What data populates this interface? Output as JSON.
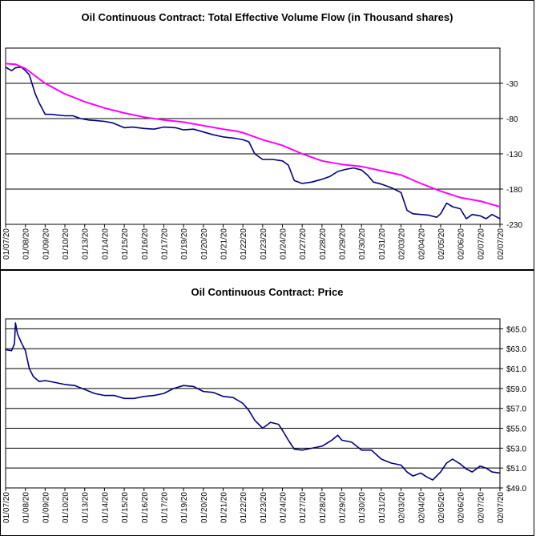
{
  "chart_data": [
    {
      "type": "line",
      "title": "Oil Continuous Contract: Total Effective Volume Flow (in Thousand shares)",
      "xlabel": "",
      "ylabel": "",
      "ylim": [
        -230,
        20
      ],
      "y_axis_side": "right",
      "y_ticks": [
        -30,
        -80,
        -130,
        -180,
        -230
      ],
      "y_tick_labels": [
        "-30",
        "-80",
        "-130",
        "-180",
        "-230"
      ],
      "grid": true,
      "x_tick_labels": [
        "01/07/20",
        "01/08/20",
        "01/09/20",
        "01/10/20",
        "01/13/20",
        "01/14/20",
        "01/15/20",
        "01/16/20",
        "01/17/20",
        "01/19/20",
        "01/20/20",
        "01/21/20",
        "01/22/20",
        "01/23/20",
        "01/24/20",
        "01/27/20",
        "01/28/20",
        "01/29/20",
        "01/30/20",
        "01/31/20",
        "02/03/20",
        "02/04/20",
        "02/05/20",
        "02/06/20",
        "02/07/20",
        "02/07/20"
      ],
      "series": [
        {
          "name": "",
          "color": "#000080",
          "style": "volume-flow",
          "points": [
            [
              0,
              -7
            ],
            [
              0.3,
              -12
            ],
            [
              0.5,
              -8
            ],
            [
              0.8,
              -7
            ],
            [
              1.0,
              -12
            ],
            [
              1.2,
              -18
            ],
            [
              1.5,
              -45
            ],
            [
              1.7,
              -58
            ],
            [
              2.0,
              -74
            ],
            [
              2.3,
              -74
            ],
            [
              2.6,
              -75
            ],
            [
              3.0,
              -76
            ],
            [
              3.4,
              -76
            ],
            [
              3.8,
              -80
            ],
            [
              4.2,
              -82
            ],
            [
              4.6,
              -83
            ],
            [
              5.0,
              -84
            ],
            [
              5.4,
              -86
            ],
            [
              6.0,
              -93
            ],
            [
              6.4,
              -92
            ],
            [
              7.0,
              -94
            ],
            [
              7.5,
              -95
            ],
            [
              8.0,
              -92
            ],
            [
              8.6,
              -93
            ],
            [
              9.0,
              -96
            ],
            [
              9.5,
              -95
            ],
            [
              10.0,
              -99
            ],
            [
              10.5,
              -103
            ],
            [
              11.0,
              -106
            ],
            [
              11.6,
              -108
            ],
            [
              12.0,
              -110
            ],
            [
              12.3,
              -113
            ],
            [
              12.6,
              -130
            ],
            [
              13.0,
              -138
            ],
            [
              13.5,
              -138
            ],
            [
              14.0,
              -140
            ],
            [
              14.3,
              -146
            ],
            [
              14.6,
              -168
            ],
            [
              15.0,
              -172
            ],
            [
              15.5,
              -170
            ],
            [
              16.0,
              -166
            ],
            [
              16.4,
              -162
            ],
            [
              16.8,
              -155
            ],
            [
              17.2,
              -152
            ],
            [
              17.6,
              -150
            ],
            [
              18.0,
              -153
            ],
            [
              18.3,
              -160
            ],
            [
              18.6,
              -170
            ],
            [
              19.0,
              -173
            ],
            [
              19.5,
              -178
            ],
            [
              20.0,
              -185
            ],
            [
              20.3,
              -210
            ],
            [
              20.6,
              -215
            ],
            [
              21.0,
              -216
            ],
            [
              21.4,
              -217
            ],
            [
              21.8,
              -220
            ],
            [
              22.0,
              -215
            ],
            [
              22.3,
              -200
            ],
            [
              22.6,
              -205
            ],
            [
              23.0,
              -208
            ],
            [
              23.3,
              -222
            ],
            [
              23.6,
              -216
            ],
            [
              24.0,
              -218
            ],
            [
              24.3,
              -222
            ],
            [
              24.6,
              -216
            ],
            [
              25.0,
              -222
            ]
          ]
        },
        {
          "name": "",
          "color": "#ff00ff",
          "style": "moving-average",
          "points": [
            [
              0,
              -2
            ],
            [
              0.5,
              -3
            ],
            [
              1.0,
              -9
            ],
            [
              2.0,
              -30
            ],
            [
              3.0,
              -45
            ],
            [
              4.0,
              -56
            ],
            [
              5.0,
              -65
            ],
            [
              6.0,
              -72
            ],
            [
              7.0,
              -78
            ],
            [
              8.0,
              -82
            ],
            [
              9.0,
              -85
            ],
            [
              10.0,
              -90
            ],
            [
              11.0,
              -95
            ],
            [
              11.7,
              -98
            ],
            [
              12.0,
              -100
            ],
            [
              13.0,
              -110
            ],
            [
              14.0,
              -118
            ],
            [
              15.0,
              -130
            ],
            [
              16.0,
              -140
            ],
            [
              17.0,
              -145
            ],
            [
              18.0,
              -148
            ],
            [
              19.0,
              -154
            ],
            [
              20.0,
              -160
            ],
            [
              21.0,
              -172
            ],
            [
              22.0,
              -183
            ],
            [
              23.0,
              -192
            ],
            [
              24.0,
              -197
            ],
            [
              25.0,
              -205
            ]
          ]
        }
      ]
    },
    {
      "type": "line",
      "title": "Oil Continuous Contract: Price",
      "xlabel": "",
      "ylabel": "",
      "ylim": [
        49,
        66
      ],
      "y_axis_side": "right",
      "y_ticks": [
        49,
        51,
        53,
        55,
        57,
        59,
        61,
        63,
        65
      ],
      "y_tick_labels": [
        "$49.0",
        "$51.0",
        "$53.0",
        "$55.0",
        "$57.0",
        "$59.0",
        "$61.0",
        "$63.0",
        "$65.0"
      ],
      "grid": true,
      "x_tick_labels": [
        "01/07/20",
        "01/08/20",
        "01/09/20",
        "01/10/20",
        "01/13/20",
        "01/14/20",
        "01/15/20",
        "01/16/20",
        "01/17/20",
        "01/19/20",
        "01/20/20",
        "01/21/20",
        "01/22/20",
        "01/23/20",
        "01/24/20",
        "01/27/20",
        "01/28/20",
        "01/29/20",
        "01/30/20",
        "01/31/20",
        "02/03/20",
        "02/04/20",
        "02/05/20",
        "02/06/20",
        "02/07/20",
        "02/07/20"
      ],
      "series": [
        {
          "name": "",
          "color": "#000080",
          "style": "price",
          "points": [
            [
              0,
              62.9
            ],
            [
              0.3,
              62.8
            ],
            [
              0.45,
              63.5
            ],
            [
              0.5,
              65.6
            ],
            [
              0.6,
              64.5
            ],
            [
              0.8,
              63.6
            ],
            [
              1.0,
              62.8
            ],
            [
              1.2,
              61.0
            ],
            [
              1.4,
              60.2
            ],
            [
              1.7,
              59.7
            ],
            [
              2.0,
              59.8
            ],
            [
              2.5,
              59.6
            ],
            [
              3.0,
              59.4
            ],
            [
              3.5,
              59.3
            ],
            [
              4.0,
              58.9
            ],
            [
              4.5,
              58.5
            ],
            [
              5.0,
              58.3
            ],
            [
              5.5,
              58.3
            ],
            [
              6.0,
              58.0
            ],
            [
              6.5,
              58.0
            ],
            [
              7.0,
              58.2
            ],
            [
              7.5,
              58.3
            ],
            [
              8.0,
              58.5
            ],
            [
              8.5,
              59.0
            ],
            [
              9.0,
              59.3
            ],
            [
              9.5,
              59.2
            ],
            [
              10.0,
              58.7
            ],
            [
              10.5,
              58.6
            ],
            [
              11.0,
              58.2
            ],
            [
              11.5,
              58.1
            ],
            [
              12.0,
              57.5
            ],
            [
              12.3,
              56.8
            ],
            [
              12.6,
              55.8
            ],
            [
              13.0,
              55.0
            ],
            [
              13.4,
              55.6
            ],
            [
              13.8,
              55.4
            ],
            [
              14.0,
              54.8
            ],
            [
              14.3,
              53.8
            ],
            [
              14.6,
              52.9
            ],
            [
              15.0,
              52.8
            ],
            [
              15.5,
              53.0
            ],
            [
              16.0,
              53.2
            ],
            [
              16.5,
              53.8
            ],
            [
              16.8,
              54.3
            ],
            [
              17.0,
              53.8
            ],
            [
              17.5,
              53.6
            ],
            [
              18.0,
              52.8
            ],
            [
              18.5,
              52.8
            ],
            [
              19.0,
              51.9
            ],
            [
              19.5,
              51.5
            ],
            [
              20.0,
              51.3
            ],
            [
              20.3,
              50.6
            ],
            [
              20.6,
              50.2
            ],
            [
              21.0,
              50.5
            ],
            [
              21.3,
              50.1
            ],
            [
              21.6,
              49.8
            ],
            [
              22.0,
              50.6
            ],
            [
              22.3,
              51.5
            ],
            [
              22.6,
              51.9
            ],
            [
              23.0,
              51.4
            ],
            [
              23.3,
              50.9
            ],
            [
              23.6,
              50.6
            ],
            [
              24.0,
              51.2
            ],
            [
              24.3,
              51.0
            ],
            [
              24.6,
              50.6
            ],
            [
              25.0,
              50.5
            ]
          ]
        }
      ]
    }
  ]
}
